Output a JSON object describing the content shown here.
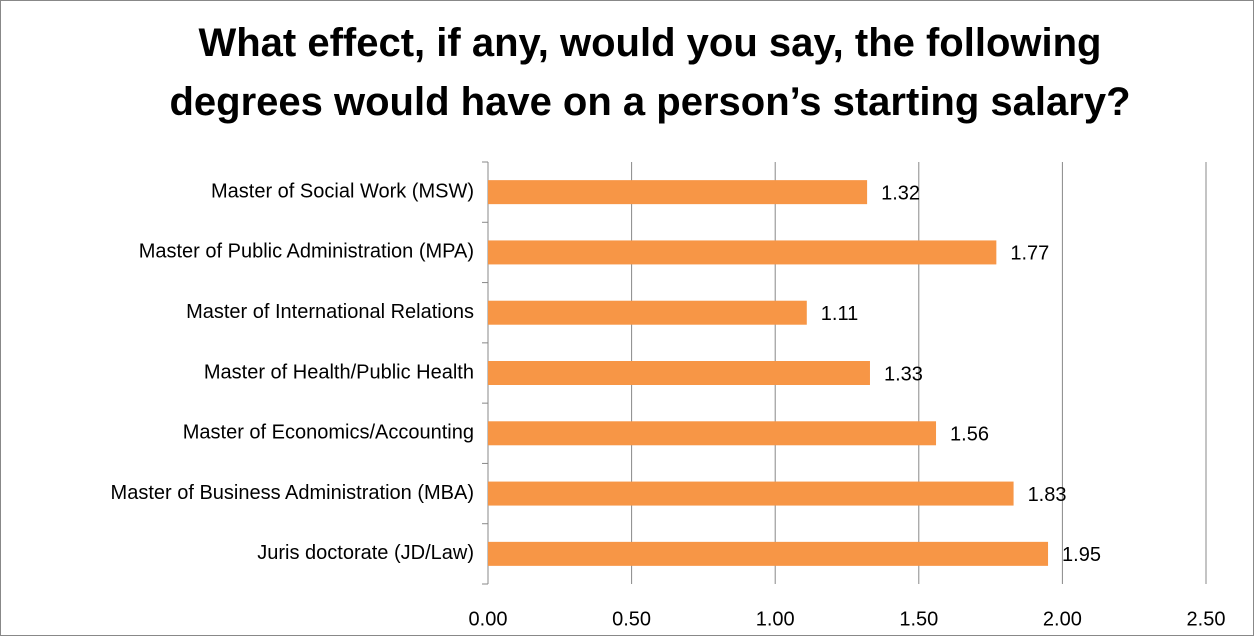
{
  "chart_data": {
    "type": "bar",
    "orientation": "horizontal",
    "title": "What effect, if any, would you say, the following degrees would have on a person’s starting salary?",
    "categories": [
      "Master of Social Work (MSW)",
      "Master of Public Administration (MPA)",
      "Master of International Relations",
      "Master of Health/Public Health",
      "Master of Economics/Accounting",
      "Master of Business Administration (MBA)",
      "Juris doctorate (JD/Law)"
    ],
    "values": [
      1.32,
      1.77,
      1.11,
      1.33,
      1.56,
      1.83,
      1.95
    ],
    "color": "#f79646",
    "xlim": [
      0,
      2.5
    ],
    "xticks": [
      {
        "value": 0,
        "label": "0.00"
      },
      {
        "value": 0.5,
        "label": "0.50"
      },
      {
        "value": 1,
        "label": "1.00"
      },
      {
        "value": 1.5,
        "label": "1.50"
      },
      {
        "value": 2,
        "label": "2.00"
      },
      {
        "value": 2.5,
        "label": "2.50"
      }
    ],
    "grid": true
  }
}
